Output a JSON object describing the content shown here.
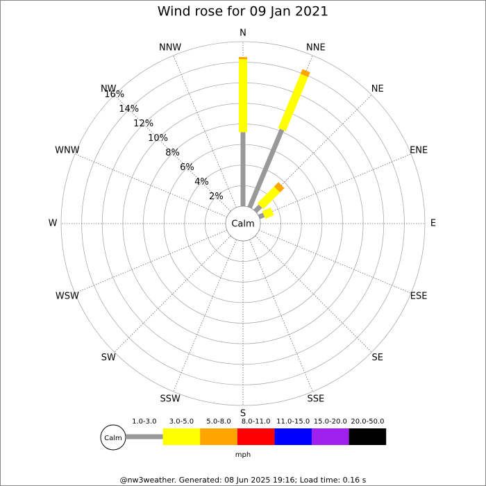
{
  "chart_data": {
    "type": "windrose",
    "title": "Wind rose for 09 Jan 2021",
    "categories": [
      "N",
      "NNE",
      "NE",
      "ENE",
      "E",
      "ESE",
      "SE",
      "SSE",
      "S",
      "SSW",
      "SW",
      "WSW",
      "W",
      "WNW",
      "NW",
      "NNW"
    ],
    "series": [
      {
        "name": "1.0-3.0",
        "color": "#999999",
        "values": [
          7.2,
          8.2,
          0.7,
          0.5,
          0,
          0,
          0,
          0,
          0,
          0,
          0,
          0,
          0,
          0,
          0,
          0
        ]
      },
      {
        "name": "3.0-5.0",
        "color": "#ffff00",
        "values": [
          7.1,
          5.7,
          2.3,
          0.9,
          0,
          0,
          0,
          0,
          0,
          0,
          0,
          0,
          0,
          0,
          0,
          0
        ]
      },
      {
        "name": "5.0-8.0",
        "color": "#ffa500",
        "values": [
          0.2,
          0.5,
          0.6,
          0,
          0,
          0,
          0,
          0,
          0,
          0,
          0,
          0,
          0,
          0,
          0,
          0
        ]
      },
      {
        "name": "8.0-11.0",
        "color": "#ff0000",
        "values": [
          0,
          0,
          0,
          0,
          0,
          0,
          0,
          0,
          0,
          0,
          0,
          0,
          0,
          0,
          0,
          0
        ]
      },
      {
        "name": "11.0-15.0",
        "color": "#0000ff",
        "values": [
          0,
          0,
          0,
          0,
          0,
          0,
          0,
          0,
          0,
          0,
          0,
          0,
          0,
          0,
          0,
          0
        ]
      },
      {
        "name": "15.0-20.0",
        "color": "#a020f0",
        "values": [
          0,
          0,
          0,
          0,
          0,
          0,
          0,
          0,
          0,
          0,
          0,
          0,
          0,
          0,
          0,
          0
        ]
      },
      {
        "name": "20.0-50.0",
        "color": "#000000",
        "values": [
          0,
          0,
          0,
          0,
          0,
          0,
          0,
          0,
          0,
          0,
          0,
          0,
          0,
          0,
          0,
          0
        ]
      }
    ],
    "rlim": [
      0,
      16
    ],
    "rticks": [
      {
        "value": 2,
        "label": "2%"
      },
      {
        "value": 4,
        "label": "4%"
      },
      {
        "value": 6,
        "label": "6%"
      },
      {
        "value": 8,
        "label": "8%"
      },
      {
        "value": 10,
        "label": "10%"
      },
      {
        "value": 12,
        "label": "12%"
      },
      {
        "value": 14,
        "label": "14%"
      },
      {
        "value": 16,
        "label": "16%"
      }
    ],
    "calm_label": "Calm",
    "unit": "mph",
    "footer": "@nw3weather. Generated: 08 Jun 2025 19:16; Load time: 0.16 s"
  }
}
